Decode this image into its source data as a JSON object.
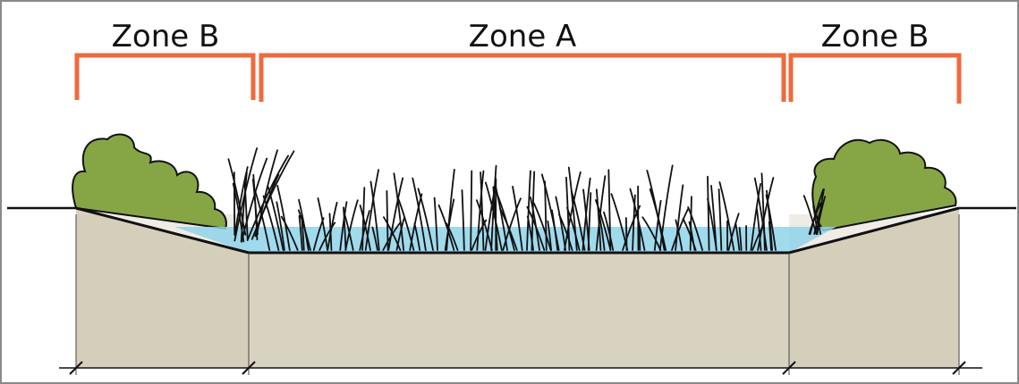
{
  "labels": {
    "zone_left": "Zone B",
    "zone_center": "Zone A",
    "zone_right": "Zone B"
  },
  "colors": {
    "bracket": "#ef6a3c",
    "soil": "#d8d2c0",
    "water": "#8fd3ea",
    "shrub": "#86a645",
    "outline": "#111111",
    "frame": "#8a8a8a"
  }
}
